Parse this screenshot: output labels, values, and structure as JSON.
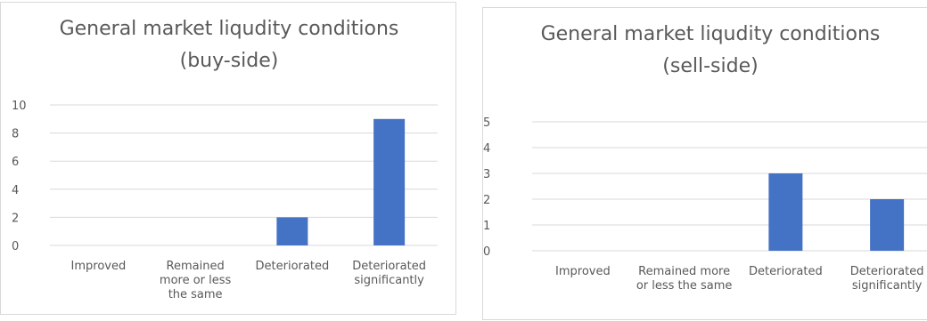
{
  "chart_data": [
    {
      "type": "bar",
      "title": [
        "General market liqudity conditions",
        "(buy-side)"
      ],
      "categories": [
        "Improved",
        "Remained more or less the same",
        "Deteriorated",
        "Deteriorated significantly"
      ],
      "category_lines": [
        [
          "Improved"
        ],
        [
          "Remained",
          "more or less",
          "the same"
        ],
        [
          "Deteriorated"
        ],
        [
          "Deteriorated",
          "significantly"
        ]
      ],
      "values": [
        0,
        0,
        2,
        9
      ],
      "ylim": [
        0,
        10
      ],
      "yticks": [
        "0",
        "2",
        "4",
        "6",
        "8",
        "10"
      ],
      "grid": true,
      "color": "#4472c4"
    },
    {
      "type": "bar",
      "title": [
        "General market liqudity conditions",
        "(sell-side)"
      ],
      "categories": [
        "Improved",
        "Remained more or less the same",
        "Deteriorated",
        "Deteriorated significantly"
      ],
      "category_lines": [
        [
          "Improved"
        ],
        [
          "Remained more",
          "or less the same"
        ],
        [
          "Deteriorated"
        ],
        [
          "Deteriorated",
          "significantly"
        ]
      ],
      "values": [
        0,
        0,
        3,
        2
      ],
      "ylim": [
        0,
        5
      ],
      "yticks": [
        "0",
        "1",
        "2",
        "3",
        "4",
        "5"
      ],
      "grid": true,
      "color": "#4472c4"
    }
  ]
}
